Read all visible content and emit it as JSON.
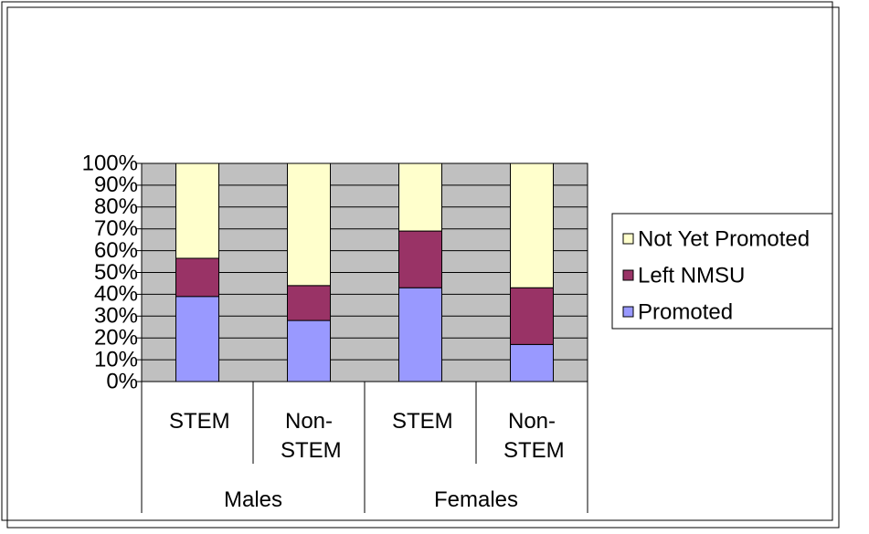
{
  "chart_data": {
    "type": "bar",
    "stacked": true,
    "categories": [
      "STEM",
      "Non-STEM",
      "STEM",
      "Non-STEM"
    ],
    "groups": [
      "Males",
      "Females"
    ],
    "series": [
      {
        "name": "Promoted",
        "color": "#9999ff",
        "values": [
          39,
          28,
          43,
          17
        ]
      },
      {
        "name": "Left NMSU",
        "color": "#993366",
        "values": [
          17.5,
          16,
          26,
          26
        ]
      },
      {
        "name": "Not Yet Promoted",
        "color": "#ffffcc",
        "values": [
          43.5,
          56,
          31,
          57
        ]
      }
    ],
    "ylim": [
      0,
      100
    ],
    "yticks": [
      {
        "value": 0,
        "label": "0%"
      },
      {
        "value": 10,
        "label": "10%"
      },
      {
        "value": 20,
        "label": "20%"
      },
      {
        "value": 30,
        "label": "30%"
      },
      {
        "value": 40,
        "label": "40%"
      },
      {
        "value": 50,
        "label": "50%"
      },
      {
        "value": 60,
        "label": "60%"
      },
      {
        "value": 70,
        "label": "70%"
      },
      {
        "value": 80,
        "label": "80%"
      },
      {
        "value": 90,
        "label": "90%"
      },
      {
        "value": 100,
        "label": "100%"
      }
    ],
    "grid": true,
    "legend": "right"
  }
}
